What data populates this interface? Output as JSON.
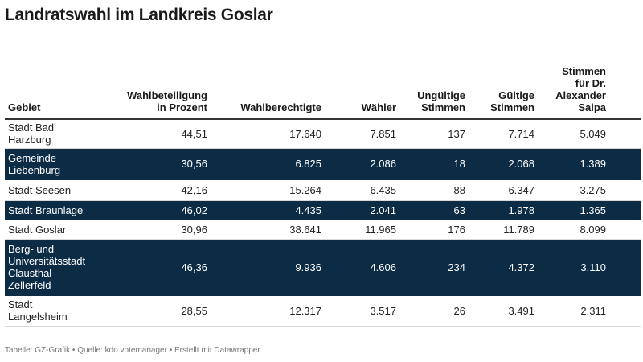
{
  "title": "Landratswahl im Landkreis Goslar",
  "colors": {
    "highlight_row": "#0c2b45",
    "highlight_text": "#ffffff",
    "text": "#222222"
  },
  "chart_data": {
    "type": "table",
    "columns": [
      [
        "Gebiet"
      ],
      [
        "Wahlbeteiligung",
        "in Prozent"
      ],
      [
        "Wahlberechtigte"
      ],
      [
        "Wähler"
      ],
      [
        "Ungültige",
        "Stimmen"
      ],
      [
        "Gültige",
        "Stimmen"
      ],
      [
        "Stimmen",
        "für Dr.",
        "Alexander",
        "Saipa"
      ]
    ],
    "rows": [
      {
        "cells": [
          [
            "Stadt Bad",
            "Harzburg"
          ],
          "44,51",
          "17.640",
          "7.851",
          "137",
          "7.714",
          "5.049"
        ],
        "highlight": false,
        "height": 36
      },
      {
        "cells": [
          [
            "Gemeinde",
            "Liebenburg"
          ],
          "30,56",
          "6.825",
          "2.086",
          "18",
          "2.068",
          "1.389"
        ],
        "highlight": true,
        "height": 39
      },
      {
        "cells": [
          [
            "Stadt Seesen"
          ],
          "42,16",
          "15.264",
          "6.435",
          "88",
          "6.347",
          "3.275"
        ],
        "highlight": false,
        "height": 26
      },
      {
        "cells": [
          [
            "Stadt Braunlage"
          ],
          "46,02",
          "4.435",
          "2.041",
          "63",
          "1.978",
          "1.365"
        ],
        "highlight": true,
        "height": 24
      },
      {
        "cells": [
          [
            "Stadt Goslar"
          ],
          "30,96",
          "38.641",
          "11.965",
          "176",
          "11.789",
          "8.099"
        ],
        "highlight": false,
        "height": 24
      },
      {
        "cells": [
          [
            "Berg- und",
            "Universitätsstadt",
            "Clausthal-",
            "Zellerfeld"
          ],
          "46,36",
          "9.936",
          "4.606",
          "234",
          "4.372",
          "3.110"
        ],
        "highlight": true,
        "height": 70
      },
      {
        "cells": [
          [
            "Stadt",
            "Langelsheim"
          ],
          "28,55",
          "12.317",
          "3.517",
          "26",
          "3.491",
          "2.311"
        ],
        "highlight": false,
        "height": 38
      }
    ]
  },
  "footer": "Tabelle: GZ-Grafik • Quelle: kdo.votemanager • Erstellt mit Datawrapper"
}
